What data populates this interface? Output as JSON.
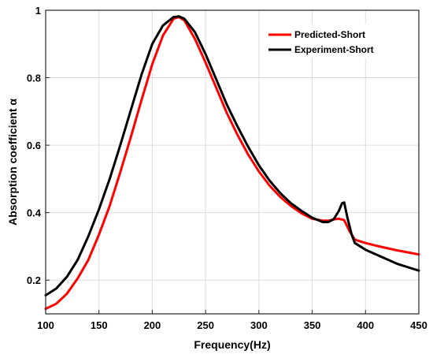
{
  "chart_data": {
    "type": "line",
    "xlabel": "Frequency(Hz)",
    "ylabel": "Absorption coefficient α",
    "xlim": [
      100,
      450
    ],
    "ylim": [
      0.1,
      1.0
    ],
    "x_ticks": [
      "100",
      "150",
      "200",
      "250",
      "300",
      "350",
      "400",
      "450"
    ],
    "y_ticks": [
      "0.2",
      "0.4",
      "0.6",
      "0.8",
      "1"
    ],
    "grid": true,
    "legend_position": "top-right",
    "series": [
      {
        "name": "Predicted-Short",
        "color": "#ff0000",
        "x": [
          100,
          110,
          120,
          130,
          140,
          150,
          160,
          170,
          180,
          190,
          200,
          210,
          220,
          225,
          230,
          240,
          250,
          260,
          270,
          280,
          290,
          300,
          310,
          320,
          330,
          340,
          350,
          360,
          365,
          370,
          375,
          380,
          385,
          390,
          400,
          410,
          420,
          430,
          440,
          450
        ],
        "values": [
          0.115,
          0.13,
          0.16,
          0.205,
          0.26,
          0.335,
          0.42,
          0.52,
          0.625,
          0.735,
          0.84,
          0.925,
          0.975,
          0.98,
          0.97,
          0.915,
          0.845,
          0.77,
          0.695,
          0.63,
          0.572,
          0.522,
          0.48,
          0.447,
          0.42,
          0.398,
          0.382,
          0.376,
          0.376,
          0.38,
          0.382,
          0.378,
          0.345,
          0.32,
          0.31,
          0.302,
          0.295,
          0.288,
          0.282,
          0.276
        ]
      },
      {
        "name": "Experiment-Short",
        "color": "#000000",
        "x": [
          100,
          110,
          120,
          130,
          140,
          150,
          160,
          170,
          180,
          190,
          200,
          210,
          220,
          225,
          230,
          240,
          250,
          260,
          270,
          280,
          290,
          300,
          310,
          320,
          330,
          340,
          350,
          360,
          365,
          370,
          375,
          378,
          380,
          383,
          387,
          390,
          400,
          410,
          420,
          430,
          440,
          450
        ],
        "values": [
          0.155,
          0.175,
          0.21,
          0.26,
          0.33,
          0.41,
          0.5,
          0.6,
          0.705,
          0.81,
          0.9,
          0.955,
          0.98,
          0.982,
          0.975,
          0.935,
          0.87,
          0.795,
          0.72,
          0.655,
          0.595,
          0.54,
          0.495,
          0.458,
          0.428,
          0.405,
          0.385,
          0.372,
          0.372,
          0.38,
          0.405,
          0.428,
          0.43,
          0.385,
          0.335,
          0.31,
          0.29,
          0.276,
          0.262,
          0.248,
          0.238,
          0.228
        ]
      }
    ]
  }
}
